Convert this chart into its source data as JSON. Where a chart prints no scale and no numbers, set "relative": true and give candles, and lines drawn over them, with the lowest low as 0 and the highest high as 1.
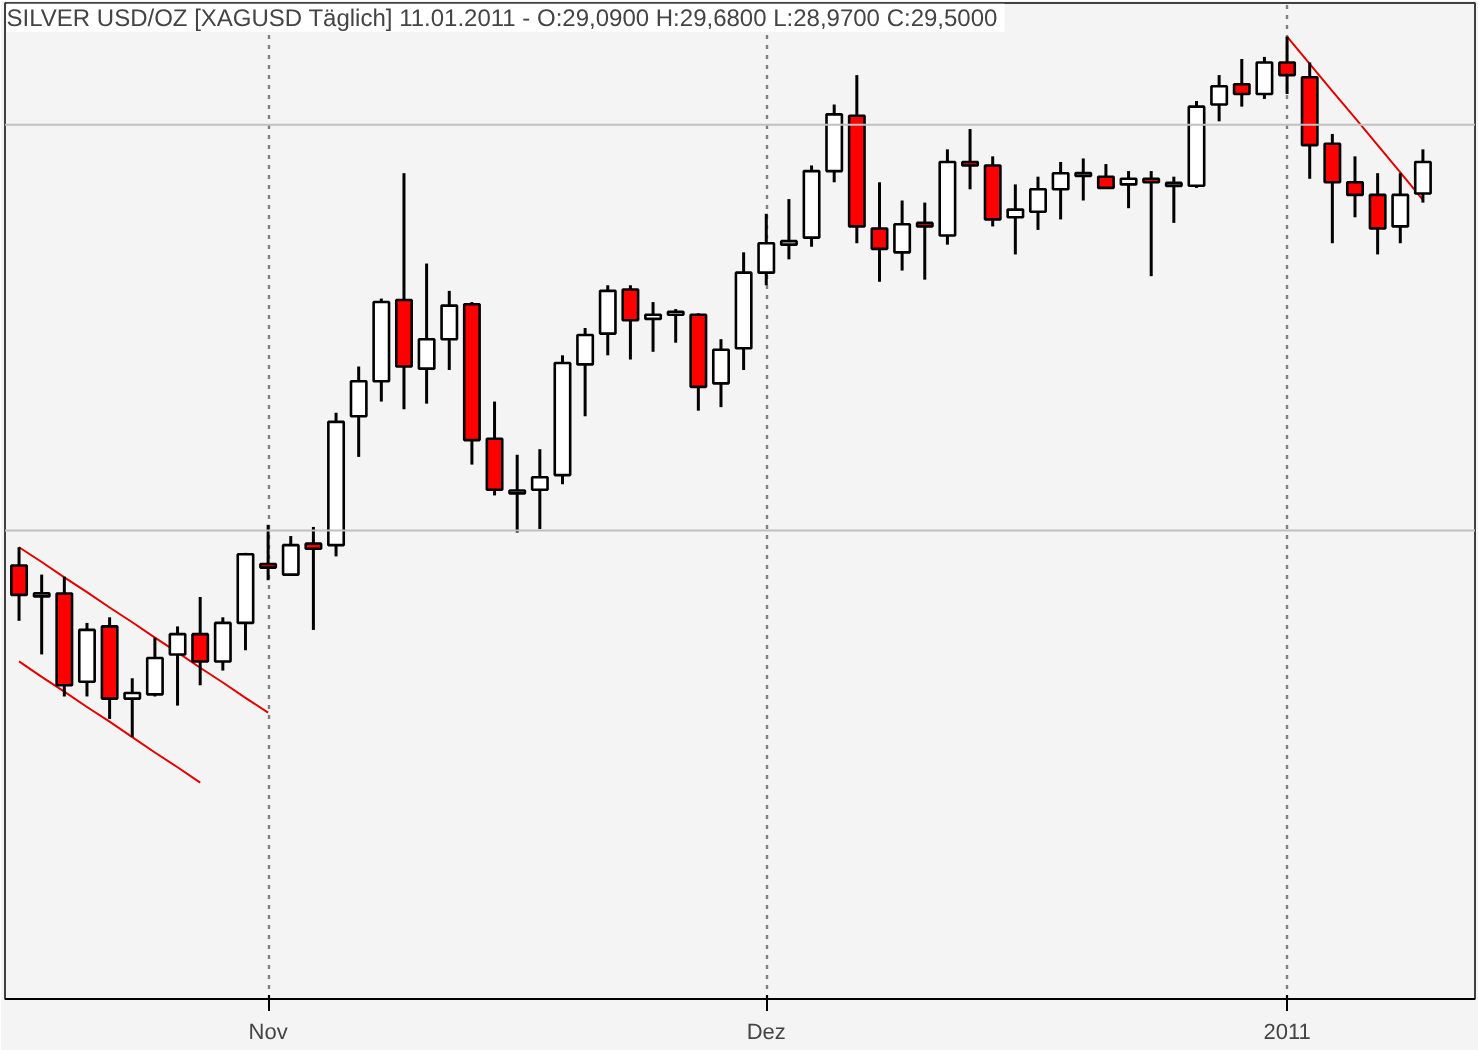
{
  "chart_data": {
    "type": "candlestick",
    "title": "SILVER USD/OZ [XAGUSD  Täglich] 11.01.2011 - O:29,0900 H:29,6800 L:28,9700 C:29,5000",
    "relative": true,
    "grid": "x",
    "categories": [
      null,
      null,
      null,
      null,
      null,
      null,
      null,
      null,
      null,
      null,
      null,
      "Nov",
      null,
      null,
      null,
      null,
      null,
      null,
      null,
      null,
      null,
      null,
      null,
      null,
      null,
      null,
      null,
      null,
      null,
      null,
      null,
      null,
      null,
      "Dez",
      null,
      null,
      null,
      null,
      null,
      null,
      null,
      null,
      null,
      null,
      null,
      null,
      null,
      null,
      null,
      null,
      null,
      null,
      null,
      null,
      null,
      null,
      "2011",
      null,
      null,
      null,
      null,
      null,
      null
    ],
    "ohlc": [
      [
        0.245,
        0.271,
        0.166,
        0.203
      ],
      [
        0.203,
        0.232,
        0.118,
        0.203
      ],
      [
        0.205,
        0.229,
        0.058,
        0.074
      ],
      [
        0.079,
        0.163,
        0.058,
        0.153
      ],
      [
        0.158,
        0.171,
        0.026,
        0.055
      ],
      [
        0.055,
        0.084,
        0,
        0.063
      ],
      [
        0.061,
        0.142,
        0.058,
        0.113
      ],
      [
        0.118,
        0.158,
        0.045,
        0.147
      ],
      [
        0.147,
        0.2,
        0.074,
        0.108
      ],
      [
        0.108,
        0.171,
        0.095,
        0.163
      ],
      [
        0.163,
        0.263,
        0.124,
        0.261
      ],
      [
        0.247,
        0.303,
        0.224,
        0.242
      ],
      [
        0.232,
        0.287,
        0.232,
        0.274
      ],
      [
        0.274,
        0.3,
        0.153,
        0.271
      ],
      [
        0.274,
        0.463,
        0.258,
        0.45
      ],
      [
        0.458,
        0.529,
        0.4,
        0.508
      ],
      [
        0.508,
        0.626,
        0.479,
        0.621
      ],
      [
        0.624,
        0.805,
        0.468,
        0.529
      ],
      [
        0.526,
        0.676,
        0.476,
        0.568
      ],
      [
        0.568,
        0.637,
        0.524,
        0.616
      ],
      [
        0.618,
        0.621,
        0.389,
        0.424
      ],
      [
        0.426,
        0.479,
        0.345,
        0.353
      ],
      [
        0.35,
        0.403,
        0.292,
        0.35
      ],
      [
        0.353,
        0.411,
        0.297,
        0.371
      ],
      [
        0.374,
        0.545,
        0.361,
        0.534
      ],
      [
        0.532,
        0.584,
        0.458,
        0.574
      ],
      [
        0.576,
        0.645,
        0.545,
        0.637
      ],
      [
        0.639,
        0.645,
        0.539,
        0.595
      ],
      [
        0.597,
        0.621,
        0.55,
        0.603
      ],
      [
        0.605,
        0.611,
        0.563,
        0.605
      ],
      [
        0.603,
        0.605,
        0.466,
        0.5
      ],
      [
        0.505,
        0.568,
        0.471,
        0.553
      ],
      [
        0.555,
        0.692,
        0.524,
        0.663
      ],
      [
        0.663,
        0.747,
        0.645,
        0.705
      ],
      [
        0.703,
        0.768,
        0.682,
        0.708
      ],
      [
        0.713,
        0.816,
        0.7,
        0.808
      ],
      [
        0.808,
        0.903,
        0.792,
        0.889
      ],
      [
        0.887,
        0.945,
        0.705,
        0.729
      ],
      [
        0.726,
        0.792,
        0.65,
        0.697
      ],
      [
        0.692,
        0.766,
        0.666,
        0.732
      ],
      [
        0.734,
        0.763,
        0.653,
        0.729
      ],
      [
        0.716,
        0.839,
        0.703,
        0.821
      ],
      [
        0.821,
        0.868,
        0.782,
        0.816
      ],
      [
        0.816,
        0.829,
        0.729,
        0.739
      ],
      [
        0.742,
        0.789,
        0.689,
        0.753
      ],
      [
        0.75,
        0.8,
        0.724,
        0.782
      ],
      [
        0.782,
        0.821,
        0.739,
        0.805
      ],
      [
        0.803,
        0.826,
        0.766,
        0.803
      ],
      [
        0.8,
        0.818,
        0.784,
        0.784
      ],
      [
        0.789,
        0.808,
        0.755,
        0.797
      ],
      [
        0.797,
        0.808,
        0.658,
        0.792
      ],
      [
        0.789,
        0.8,
        0.734,
        0.789
      ],
      [
        0.787,
        0.908,
        0.784,
        0.9
      ],
      [
        0.903,
        0.945,
        0.879,
        0.929
      ],
      [
        0.932,
        0.968,
        0.9,
        0.918
      ],
      [
        0.918,
        0.971,
        0.911,
        0.963
      ],
      [
        0.963,
        1,
        0.918,
        0.945
      ],
      [
        0.942,
        0.963,
        0.797,
        0.845
      ],
      [
        0.847,
        0.861,
        0.705,
        0.792
      ],
      [
        0.792,
        0.829,
        0.742,
        0.774
      ],
      [
        0.774,
        0.805,
        0.689,
        0.726
      ],
      [
        0.729,
        0.805,
        0.705,
        0.774
      ],
      [
        0.776,
        0.839,
        0.763,
        0.821
      ]
    ],
    "colors": [
      "#ff0000",
      "#ffffff",
      "#ff0000",
      "#ffffff",
      "#ff0000",
      "#ffffff",
      "#ffffff",
      "#ffffff",
      "#ff0000",
      "#ffffff",
      "#ffffff",
      "#ff0000",
      "#ffffff",
      "#ff0000",
      "#ffffff",
      "#ffffff",
      "#ffffff",
      "#ff0000",
      "#ffffff",
      "#ffffff",
      "#ff0000",
      "#ff0000",
      "#ffffff",
      "#ffffff",
      "#ffffff",
      "#ffffff",
      "#ffffff",
      "#ff0000",
      "#ffffff",
      "#ffffff",
      "#ff0000",
      "#ffffff",
      "#ffffff",
      "#ffffff",
      "#ffffff",
      "#ffffff",
      "#ffffff",
      "#ff0000",
      "#ff0000",
      "#ffffff",
      "#ff0000",
      "#ffffff",
      "#ff0000",
      "#ff0000",
      "#ffffff",
      "#ffffff",
      "#ffffff",
      "#ffffff",
      "#ff0000",
      "#ffffff",
      "#ff0000",
      "#ffffff",
      "#ffffff",
      "#ffffff",
      "#ff0000",
      "#ffffff",
      "#ff0000",
      "#ff0000",
      "#ff0000",
      "#ff0000",
      "#ff0000",
      "#ffffff",
      "#ffffff"
    ],
    "series": [
      {
        "type": "line",
        "color": "#e00000",
        "values": [
          0.271,
          0.25,
          0.228,
          0.207,
          0.185,
          0.164,
          0.142,
          0.121,
          0.099,
          0.078,
          0.056,
          0.035,
          null,
          null,
          null,
          null,
          null,
          null,
          null,
          null,
          null,
          null,
          null,
          null,
          null,
          null,
          null,
          null,
          null,
          null,
          null,
          null,
          null,
          null,
          null,
          null,
          null,
          null,
          null,
          null,
          null,
          null,
          null,
          null,
          null,
          null,
          null,
          null,
          null,
          null,
          null,
          null,
          null,
          null,
          null,
          null,
          null,
          null,
          null,
          null,
          null,
          null,
          null
        ]
      },
      {
        "type": "line",
        "color": "#e00000",
        "values": [
          0.108,
          0.086,
          0.065,
          0.043,
          0.022,
          0,
          -0.022,
          -0.043,
          -0.065,
          null,
          null,
          null,
          null,
          null,
          null,
          null,
          null,
          null,
          null,
          null,
          null,
          null,
          null,
          null,
          null,
          null,
          null,
          null,
          null,
          null,
          null,
          null,
          null,
          null,
          null,
          null,
          null,
          null,
          null,
          null,
          null,
          null,
          null,
          null,
          null,
          null,
          null,
          null,
          null,
          null,
          null,
          null,
          null,
          null,
          null,
          null,
          null,
          null,
          null,
          null,
          null,
          null,
          null
        ]
      },
      {
        "type": "line",
        "color": "#e00000",
        "values": [
          null,
          null,
          null,
          null,
          null,
          null,
          null,
          null,
          null,
          null,
          null,
          null,
          null,
          null,
          null,
          null,
          null,
          null,
          null,
          null,
          null,
          null,
          null,
          null,
          null,
          null,
          null,
          null,
          null,
          null,
          null,
          null,
          null,
          null,
          null,
          null,
          null,
          null,
          null,
          null,
          null,
          null,
          null,
          null,
          null,
          null,
          null,
          null,
          null,
          null,
          null,
          null,
          null,
          null,
          null,
          null,
          1.0,
          0.961,
          0.922,
          0.884,
          0.845,
          0.806,
          0.767
        ]
      }
    ],
    "ref_lines": [
      {
        "axis": "y",
        "value": 0.874,
        "color": "#c0c0c0"
      },
      {
        "axis": "y",
        "value": 0.295,
        "color": "#c0c0c0"
      }
    ]
  }
}
